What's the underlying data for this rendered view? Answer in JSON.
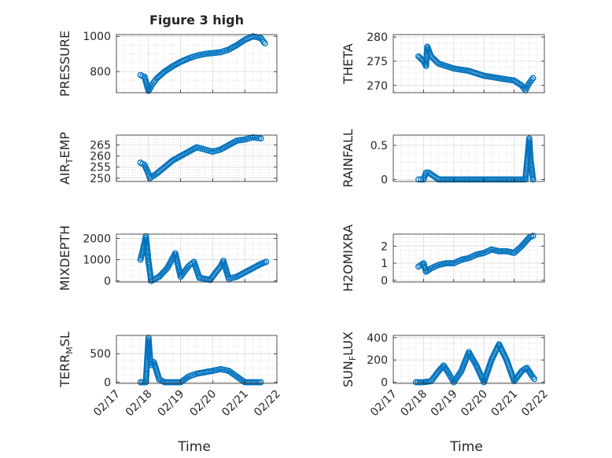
{
  "figure_title": "Figure 3 high",
  "xlabel": "Time",
  "date_ticks": [
    "02/17",
    "02/18",
    "02/19",
    "02/20",
    "02/21",
    "02/22"
  ],
  "colors": {
    "marker": "#0072BD",
    "grid": "#E0E0E0",
    "axis": "#262626"
  },
  "chart_data": [
    {
      "type": "scatter",
      "ylabel": "PRESSURE",
      "ylim": [
        680,
        1010
      ],
      "yticks": [
        800,
        1000
      ],
      "yticklabels": [
        "800",
        "1000"
      ],
      "xlim": [
        "02/17",
        "02/22"
      ],
      "xticklabels": false,
      "grid": "major+minor",
      "points": [
        [
          "02/17 18:00",
          780
        ],
        [
          "02/17 21:00",
          770
        ],
        [
          "02/18 00:00",
          690
        ],
        [
          "02/18 03:00",
          730
        ],
        [
          "02/18 06:00",
          760
        ],
        [
          "02/18 12:00",
          800
        ],
        [
          "02/18 18:00",
          830
        ],
        [
          "02/19 00:00",
          855
        ],
        [
          "02/19 06:00",
          875
        ],
        [
          "02/19 12:00",
          890
        ],
        [
          "02/19 18:00",
          900
        ],
        [
          "02/20 00:00",
          905
        ],
        [
          "02/20 06:00",
          910
        ],
        [
          "02/20 12:00",
          925
        ],
        [
          "02/20 18:00",
          950
        ],
        [
          "02/21 00:00",
          980
        ],
        [
          "02/21 06:00",
          1000
        ],
        [
          "02/21 12:00",
          990
        ],
        [
          "02/21 15:00",
          960
        ]
      ]
    },
    {
      "type": "scatter",
      "ylabel": "THETA",
      "ylim": [
        268.5,
        280.5
      ],
      "yticks": [
        270,
        275,
        280
      ],
      "yticklabels": [
        "270",
        "275",
        "280"
      ],
      "xlim": [
        "02/17",
        "02/22"
      ],
      "xticklabels": false,
      "grid": "major+minor",
      "points": [
        [
          "02/17 20:00",
          276
        ],
        [
          "02/18 00:00",
          275
        ],
        [
          "02/18 02:00",
          274
        ],
        [
          "02/18 03:00",
          278
        ],
        [
          "02/18 06:00",
          276
        ],
        [
          "02/18 12:00",
          274.5
        ],
        [
          "02/18 18:00",
          274
        ],
        [
          "02/19 00:00",
          273.5
        ],
        [
          "02/19 12:00",
          273
        ],
        [
          "02/20 00:00",
          272
        ],
        [
          "02/20 12:00",
          271.5
        ],
        [
          "02/21 00:00",
          271
        ],
        [
          "02/21 06:00",
          270
        ],
        [
          "02/21 09:00",
          269
        ],
        [
          "02/21 12:00",
          270.5
        ],
        [
          "02/21 15:00",
          271.5
        ]
      ]
    },
    {
      "type": "scatter",
      "ylabel": "AIR_TEMP",
      "ylim": [
        248.5,
        269.5
      ],
      "yticks": [
        250,
        255,
        260,
        265
      ],
      "yticklabels": [
        "250",
        "255",
        "260",
        "265"
      ],
      "xlim": [
        "02/17",
        "02/22"
      ],
      "xticklabels": false,
      "grid": "major+minor",
      "points": [
        [
          "02/17 18:00",
          257
        ],
        [
          "02/17 21:00",
          256
        ],
        [
          "02/18 00:00",
          252
        ],
        [
          "02/18 01:00",
          250
        ],
        [
          "02/18 06:00",
          252
        ],
        [
          "02/18 12:00",
          255
        ],
        [
          "02/18 18:00",
          258
        ],
        [
          "02/19 00:00",
          260
        ],
        [
          "02/19 06:00",
          262
        ],
        [
          "02/19 12:00",
          264
        ],
        [
          "02/19 18:00",
          263
        ],
        [
          "02/20 00:00",
          262
        ],
        [
          "02/20 06:00",
          263
        ],
        [
          "02/20 12:00",
          265
        ],
        [
          "02/20 18:00",
          267
        ],
        [
          "02/21 00:00",
          267.5
        ],
        [
          "02/21 06:00",
          268.5
        ],
        [
          "02/21 12:00",
          268
        ]
      ]
    },
    {
      "type": "scatter",
      "ylabel": "RAINFALL",
      "ylim": [
        -0.03,
        0.65
      ],
      "yticks": [
        0,
        0.5
      ],
      "yticklabels": [
        "0",
        "0.5"
      ],
      "xlim": [
        "02/17",
        "02/22"
      ],
      "xticklabels": false,
      "grid": "major+minor",
      "points": [
        [
          "02/17 20:00",
          0
        ],
        [
          "02/18 00:00",
          0
        ],
        [
          "02/18 02:00",
          0.1
        ],
        [
          "02/18 04:00",
          0.1
        ],
        [
          "02/18 12:00",
          0
        ],
        [
          "02/19 00:00",
          0
        ],
        [
          "02/19 12:00",
          0
        ],
        [
          "02/20 00:00",
          0
        ],
        [
          "02/20 12:00",
          0
        ],
        [
          "02/21 00:00",
          0
        ],
        [
          "02/21 09:00",
          0
        ],
        [
          "02/21 12:00",
          0.6
        ],
        [
          "02/21 13:00",
          0.3
        ],
        [
          "02/21 15:00",
          0
        ]
      ]
    },
    {
      "type": "scatter",
      "ylabel": "MIXDEPTH",
      "ylim": [
        -50,
        2200
      ],
      "yticks": [
        0,
        1000,
        2000
      ],
      "yticklabels": [
        "0",
        "1000",
        "2000"
      ],
      "xlim": [
        "02/17",
        "02/22"
      ],
      "xticklabels": false,
      "grid": "major+minor",
      "points": [
        [
          "02/17 18:00",
          1000
        ],
        [
          "02/17 20:00",
          1500
        ],
        [
          "02/17 22:00",
          2100
        ],
        [
          "02/18 00:00",
          900
        ],
        [
          "02/18 02:00",
          0
        ],
        [
          "02/18 08:00",
          200
        ],
        [
          "02/18 14:00",
          600
        ],
        [
          "02/18 20:00",
          1300
        ],
        [
          "02/19 00:00",
          200
        ],
        [
          "02/19 06:00",
          700
        ],
        [
          "02/19 10:00",
          900
        ],
        [
          "02/19 14:00",
          150
        ],
        [
          "02/19 22:00",
          50
        ],
        [
          "02/20 06:00",
          700
        ],
        [
          "02/20 08:00",
          950
        ],
        [
          "02/20 12:00",
          100
        ],
        [
          "02/20 18:00",
          200
        ],
        [
          "02/21 00:00",
          400
        ],
        [
          "02/21 06:00",
          600
        ],
        [
          "02/21 12:00",
          800
        ],
        [
          "02/21 16:00",
          900
        ]
      ]
    },
    {
      "type": "scatter",
      "ylabel": "H2OMIXRA",
      "ylim": [
        -0.1,
        2.7
      ],
      "yticks": [
        0,
        1,
        2
      ],
      "yticklabels": [
        "0",
        "1",
        "2"
      ],
      "xlim": [
        "02/17",
        "02/22"
      ],
      "xticklabels": false,
      "grid": "major+minor",
      "points": [
        [
          "02/17 20:00",
          0.8
        ],
        [
          "02/18 00:00",
          1.0
        ],
        [
          "02/18 02:00",
          0.5
        ],
        [
          "02/18 06:00",
          0.7
        ],
        [
          "02/18 12:00",
          0.9
        ],
        [
          "02/18 18:00",
          1.0
        ],
        [
          "02/19 00:00",
          1.0
        ],
        [
          "02/19 06:00",
          1.2
        ],
        [
          "02/19 12:00",
          1.3
        ],
        [
          "02/19 18:00",
          1.5
        ],
        [
          "02/20 00:00",
          1.6
        ],
        [
          "02/20 06:00",
          1.8
        ],
        [
          "02/20 12:00",
          1.7
        ],
        [
          "02/20 18:00",
          1.7
        ],
        [
          "02/21 00:00",
          1.6
        ],
        [
          "02/21 06:00",
          2.0
        ],
        [
          "02/21 12:00",
          2.5
        ],
        [
          "02/21 15:00",
          2.6
        ]
      ]
    },
    {
      "type": "scatter",
      "ylabel": "TERR_MSL",
      "ylim": [
        -20,
        820
      ],
      "yticks": [
        0,
        500
      ],
      "yticklabels": [
        "0",
        "500"
      ],
      "xlim": [
        "02/17",
        "02/22"
      ],
      "xticklabels": true,
      "grid": "major+minor",
      "points": [
        [
          "02/17 18:00",
          0
        ],
        [
          "02/17 22:00",
          0
        ],
        [
          "02/18 00:00",
          780
        ],
        [
          "02/18 01:00",
          450
        ],
        [
          "02/18 02:00",
          300
        ],
        [
          "02/18 04:00",
          350
        ],
        [
          "02/18 06:00",
          200
        ],
        [
          "02/18 08:00",
          50
        ],
        [
          "02/18 12:00",
          0
        ],
        [
          "02/19 00:00",
          0
        ],
        [
          "02/19 06:00",
          100
        ],
        [
          "02/19 12:00",
          150
        ],
        [
          "02/20 00:00",
          200
        ],
        [
          "02/20 06:00",
          230
        ],
        [
          "02/20 12:00",
          200
        ],
        [
          "02/20 18:00",
          100
        ],
        [
          "02/21 00:00",
          0
        ],
        [
          "02/21 12:00",
          0
        ]
      ]
    },
    {
      "type": "scatter",
      "ylabel": "SUN_FLUX",
      "ylim": [
        -10,
        420
      ],
      "yticks": [
        0,
        200,
        400
      ],
      "yticklabels": [
        "0",
        "200",
        "400"
      ],
      "xlim": [
        "02/17",
        "02/22"
      ],
      "xticklabels": true,
      "grid": "major+minor",
      "points": [
        [
          "02/17 18:00",
          0
        ],
        [
          "02/18 00:00",
          0
        ],
        [
          "02/18 06:00",
          10
        ],
        [
          "02/18 12:00",
          100
        ],
        [
          "02/18 16:00",
          150
        ],
        [
          "02/18 20:00",
          80
        ],
        [
          "02/19 00:00",
          0
        ],
        [
          "02/19 06:00",
          100
        ],
        [
          "02/19 12:00",
          270
        ],
        [
          "02/19 18:00",
          150
        ],
        [
          "02/20 00:00",
          0
        ],
        [
          "02/20 06:00",
          200
        ],
        [
          "02/20 12:00",
          340
        ],
        [
          "02/20 18:00",
          200
        ],
        [
          "02/21 00:00",
          10
        ],
        [
          "02/21 06:00",
          100
        ],
        [
          "02/21 10:00",
          130
        ],
        [
          "02/21 14:00",
          60
        ],
        [
          "02/21 16:00",
          30
        ]
      ]
    }
  ]
}
